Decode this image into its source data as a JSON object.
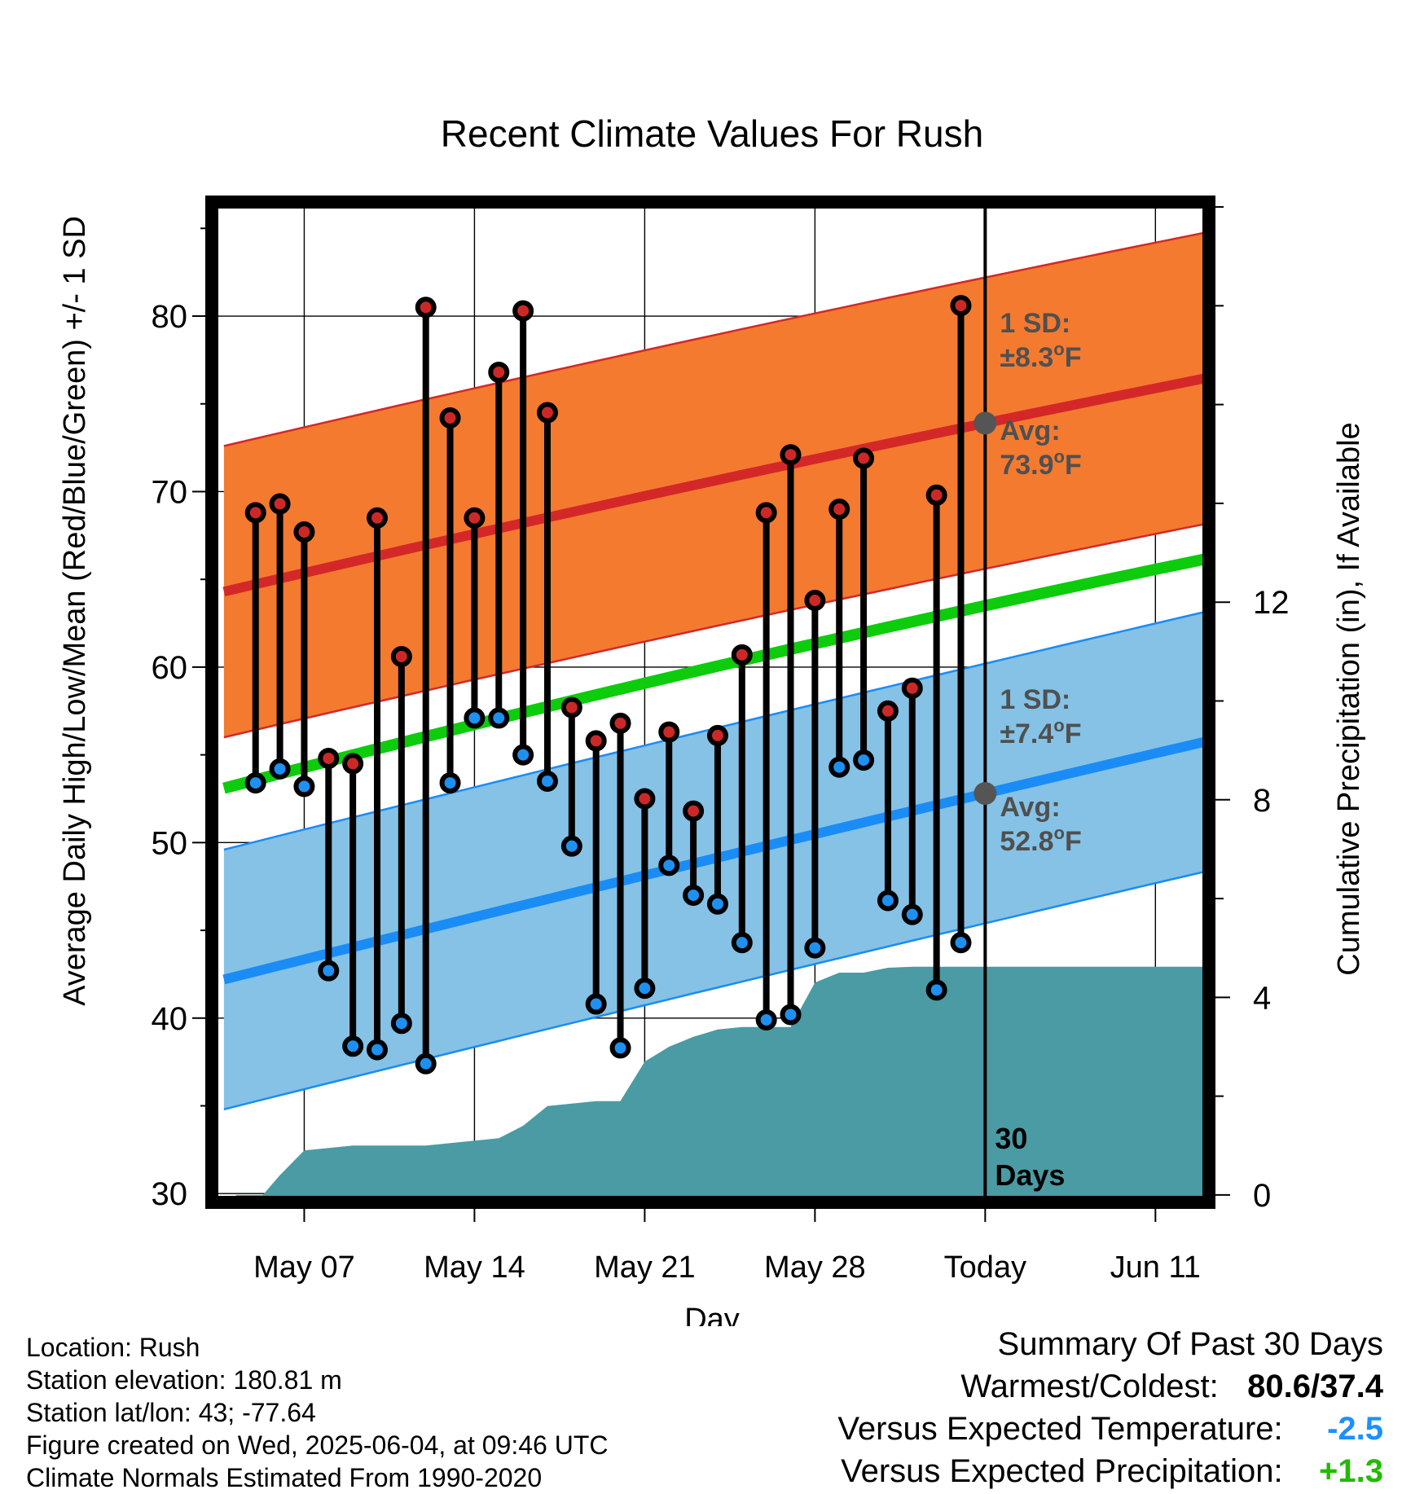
{
  "chart_data": {
    "type": "line",
    "title": "Recent Climate Values For Rush",
    "xlabel": "Day",
    "ylabel": "Average Daily High/Low/Mean (Red/Blue/Green) +/- 1 SD",
    "y2label": "Cumulative Precipitation (in), If Available",
    "ylim": [
      29.5,
      86.5
    ],
    "y2lim": [
      -0.15,
      20.1
    ],
    "y_ticks": [
      "30",
      "40",
      "50",
      "60",
      "70",
      "80"
    ],
    "y2_ticks": [
      "0",
      "4",
      "8",
      "12"
    ],
    "x_ticks": [
      "May 07",
      "May 14",
      "May 21",
      "May 28",
      "Today",
      "Jun 11"
    ],
    "x_tick_days": [
      7,
      14,
      21,
      28,
      35,
      42
    ],
    "xlim": [
      3.2,
      44.2
    ],
    "today_day": 35,
    "days": [
      5,
      6,
      7,
      8,
      9,
      10,
      11,
      12,
      13,
      14,
      15,
      16,
      17,
      18,
      19,
      20,
      21,
      22,
      23,
      24,
      25,
      26,
      27,
      28,
      29,
      30,
      31,
      32,
      33,
      34
    ],
    "highs": [
      68.8,
      69.3,
      67.7,
      54.8,
      54.5,
      68.5,
      60.6,
      80.5,
      74.2,
      68.5,
      76.8,
      80.3,
      74.5,
      57.7,
      55.8,
      56.8,
      52.5,
      56.3,
      51.8,
      56.1,
      60.7,
      68.8,
      72.1,
      63.8,
      69.0,
      71.9,
      57.5,
      58.8,
      69.8,
      80.6
    ],
    "lows": [
      53.4,
      54.2,
      53.2,
      42.7,
      38.4,
      38.2,
      39.7,
      37.4,
      53.4,
      57.1,
      57.1,
      55.0,
      53.5,
      49.8,
      40.8,
      38.3,
      41.7,
      48.7,
      47.0,
      46.5,
      44.3,
      39.9,
      40.2,
      44.0,
      54.3,
      54.7,
      46.7,
      45.9,
      41.6,
      44.3
    ],
    "normal_high": {
      "days": [
        3.7,
        35,
        44.2
      ],
      "values": [
        64.3,
        73.9,
        76.5
      ],
      "sd": 8.3
    },
    "normal_low": {
      "days": [
        3.7,
        35,
        44.2
      ],
      "values": [
        42.2,
        52.8,
        55.8
      ],
      "sd": 7.4
    },
    "normal_mean": {
      "days": [
        3.7,
        35,
        44.2
      ],
      "values": [
        53.1,
        63.5,
        66.2
      ]
    },
    "precip_cumulative": {
      "days": [
        4.2,
        5.3,
        6.0,
        7.0,
        8.0,
        9.0,
        10.0,
        11.0,
        12.0,
        13.0,
        14.0,
        15.0,
        16.0,
        17.0,
        18.0,
        19.0,
        20.0,
        21.0,
        22.0,
        23.0,
        24.0,
        25.0,
        26.0,
        27.0,
        28.0,
        29.0,
        30.0,
        31.0,
        32.0,
        33.0,
        34.0,
        35.0,
        44.2
      ],
      "values": [
        0.0,
        0.0,
        0.4,
        0.9,
        0.95,
        1.0,
        1.0,
        1.0,
        1.0,
        1.05,
        1.1,
        1.15,
        1.4,
        1.8,
        1.85,
        1.9,
        1.9,
        2.7,
        3.0,
        3.2,
        3.35,
        3.4,
        3.4,
        3.4,
        4.3,
        4.5,
        4.5,
        4.6,
        4.62,
        4.62,
        4.62,
        4.62,
        4.62
      ]
    },
    "colors": {
      "high_band": "#f47a30",
      "high_line": "#d42828",
      "low_band": "#85c2e6",
      "low_line": "#1a8cf5",
      "mean_line": "#0ccc0c",
      "precip": "#4a9ba3",
      "high_marker": "#cc2828",
      "low_marker": "#1e90f0",
      "annotation": "#505050"
    },
    "annotations": {
      "high_sd_label": "1 SD:",
      "high_sd_value": "±8.3",
      "high_avg_label": "Avg:",
      "high_avg_value": "73.9",
      "low_sd_label": "1 SD:",
      "low_sd_value": "±7.4",
      "low_avg_label": "Avg:",
      "low_avg_value": "52.8",
      "unit_degree": "o",
      "unit_f": "F",
      "days_count": "30",
      "days_word": "Days"
    }
  },
  "info": {
    "location": "Location: Rush",
    "elevation": "Station elevation: 180.81 m",
    "latlon": "Station lat/lon: 43; -77.64",
    "created": "Figure created on Wed, 2025-06-04, at 09:46 UTC",
    "normals": "Climate Normals Estimated From 1990-2020"
  },
  "summary": {
    "title": "Summary Of Past 30 Days",
    "warm_cold_label": "Warmest/Coldest:",
    "warm_cold_value": "80.6/37.4",
    "temp_label": "Versus Expected Temperature:",
    "temp_value": "-2.5",
    "temp_color": "#1e90ff",
    "precip_label": "Versus Expected Precipitation:",
    "precip_value": "+1.3",
    "precip_color": "#22bb00"
  }
}
